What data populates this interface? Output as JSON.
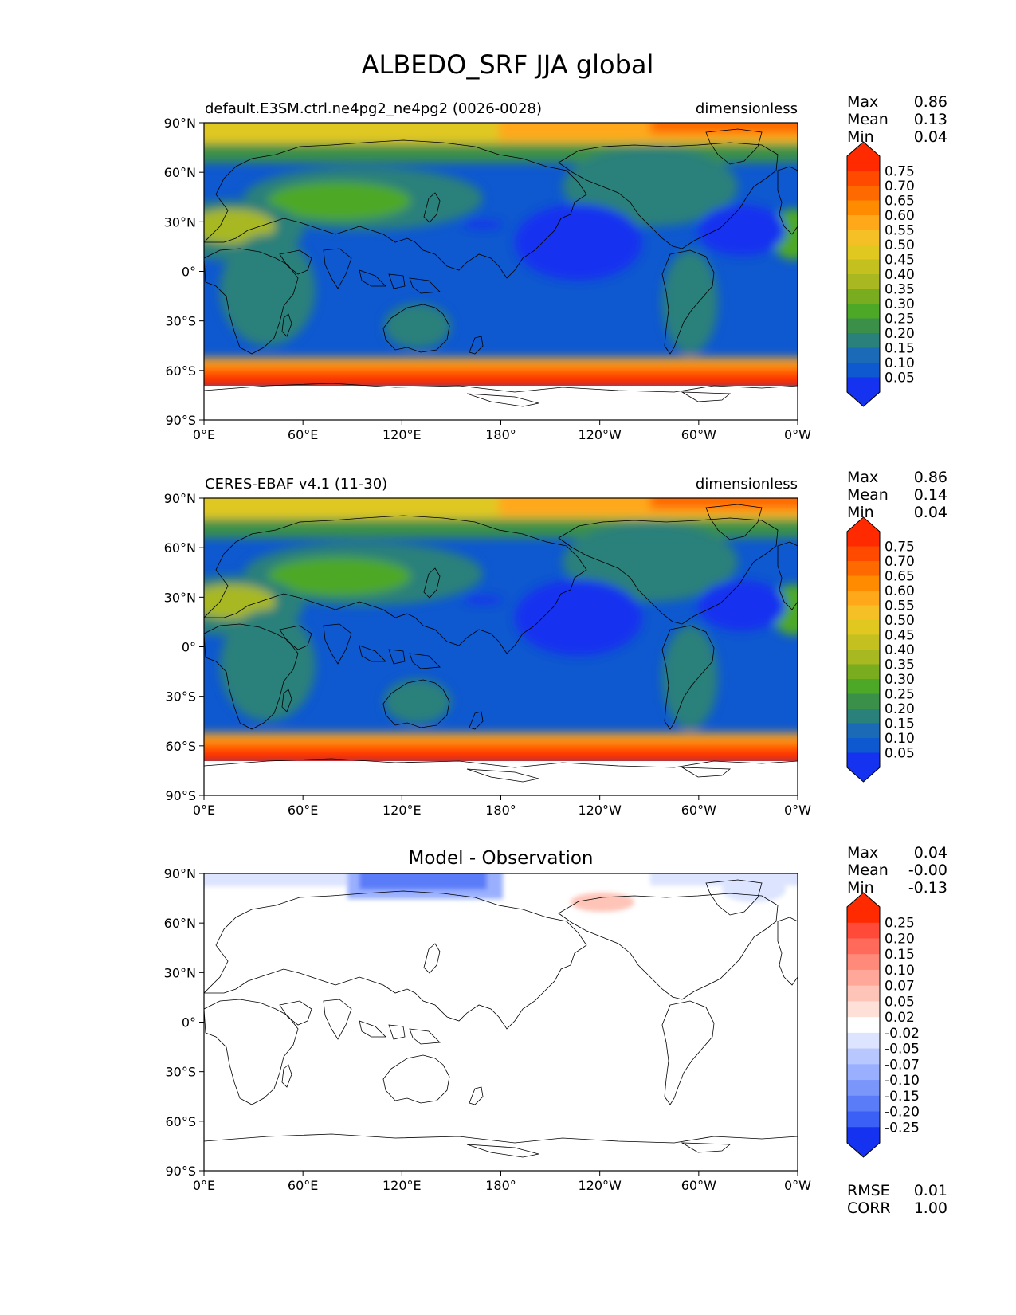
{
  "figure": {
    "title": "ALBEDO_SRF JJA global"
  },
  "lat_ticks": [
    "90°N",
    "60°N",
    "30°N",
    "0°",
    "30°S",
    "60°S",
    "90°S"
  ],
  "lon_ticks": [
    "0°E",
    "60°E",
    "120°E",
    "180°",
    "120°W",
    "60°W",
    "0°W"
  ],
  "stat_labels": {
    "max": "Max",
    "mean": "Mean",
    "min": "Min",
    "rmse": "RMSE",
    "corr": "CORR"
  },
  "chart_data": [
    {
      "type": "heatmap",
      "title": "default.E3SM.ctrl.ne4pg2_ne4pg2 (0026-0028)",
      "units": "dimensionless",
      "stats": {
        "max": "0.86",
        "mean": "0.13",
        "min": "0.04"
      },
      "xlim": [
        0,
        360
      ],
      "ylim": [
        -90,
        90
      ],
      "colorbar": {
        "labels": [
          "0.75",
          "0.70",
          "0.65",
          "0.60",
          "0.55",
          "0.50",
          "0.45",
          "0.40",
          "0.35",
          "0.30",
          "0.25",
          "0.20",
          "0.15",
          "0.10",
          "0.05"
        ],
        "colors": [
          "#ff2a00",
          "#ff4a00",
          "#ff6a00",
          "#ff8c00",
          "#ffa81a",
          "#f5c025",
          "#e0c820",
          "#c4c020",
          "#a8b820",
          "#7aac20",
          "#4ea828",
          "#3a9048",
          "#2a807a",
          "#1a6ab8",
          "#0e58d0",
          "#1432f0"
        ]
      }
    },
    {
      "type": "heatmap",
      "title": "CERES-EBAF v4.1 (11-30)",
      "units": "dimensionless",
      "stats": {
        "max": "0.86",
        "mean": "0.14",
        "min": "0.04"
      },
      "xlim": [
        0,
        360
      ],
      "ylim": [
        -90,
        90
      ],
      "colorbar": {
        "labels": [
          "0.75",
          "0.70",
          "0.65",
          "0.60",
          "0.55",
          "0.50",
          "0.45",
          "0.40",
          "0.35",
          "0.30",
          "0.25",
          "0.20",
          "0.15",
          "0.10",
          "0.05"
        ],
        "colors": [
          "#ff2a00",
          "#ff4a00",
          "#ff6a00",
          "#ff8c00",
          "#ffa81a",
          "#f5c025",
          "#e0c820",
          "#c4c020",
          "#a8b820",
          "#7aac20",
          "#4ea828",
          "#3a9048",
          "#2a807a",
          "#1a6ab8",
          "#0e58d0",
          "#1432f0"
        ]
      }
    },
    {
      "type": "heatmap",
      "title": "Model - Observation",
      "stats": {
        "max": "0.04",
        "mean": "-0.00",
        "min": "-0.13",
        "rmse": "0.01",
        "corr": "1.00"
      },
      "xlim": [
        0,
        360
      ],
      "ylim": [
        -90,
        90
      ],
      "colorbar": {
        "labels": [
          "0.25",
          "0.20",
          "0.15",
          "0.10",
          "0.07",
          "0.05",
          "0.02",
          "-0.02",
          "-0.05",
          "-0.07",
          "-0.10",
          "-0.15",
          "-0.20",
          "-0.25"
        ],
        "colors": [
          "#ff2a00",
          "#ff4a3a",
          "#ff6a5a",
          "#ff8a7a",
          "#ffa89a",
          "#ffc4b8",
          "#ffe0d8",
          "#ffffff",
          "#dce4ff",
          "#b8c8ff",
          "#9ab0ff",
          "#7a96fa",
          "#5a7cf8",
          "#3a60f5",
          "#1432f0"
        ]
      }
    }
  ]
}
